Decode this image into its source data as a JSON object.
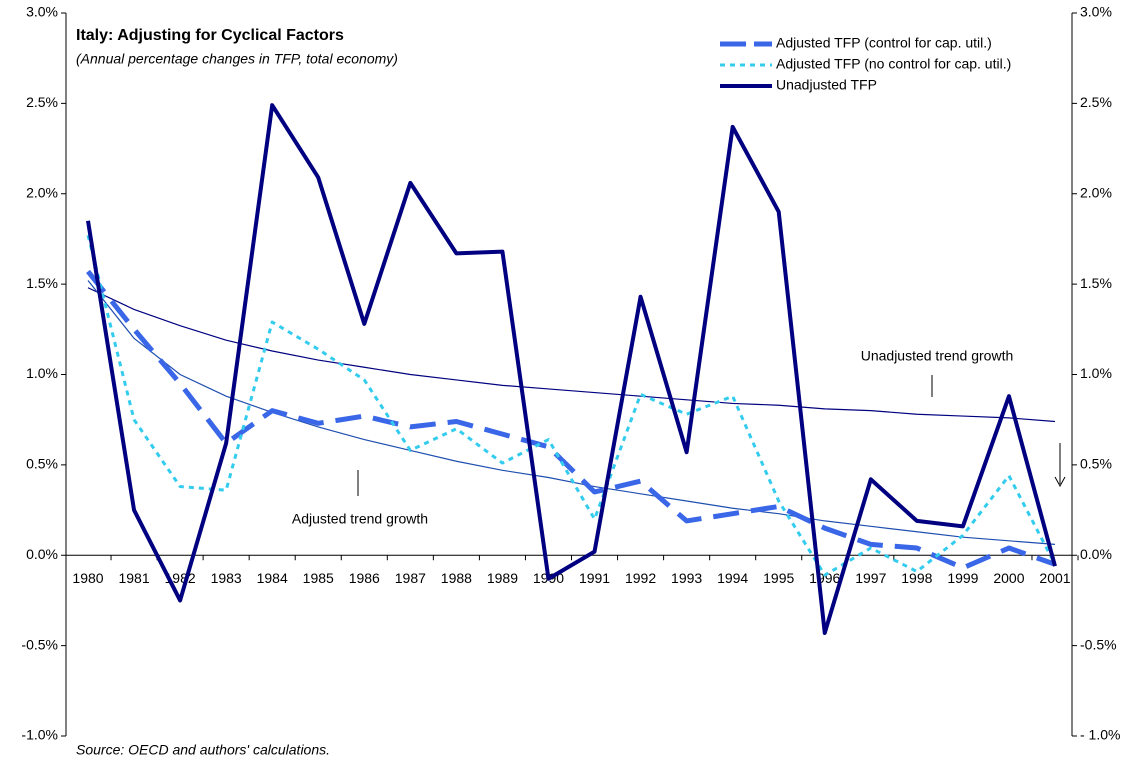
{
  "chart_data": {
    "type": "line",
    "title": "Italy: Adjusting for Cyclical Factors",
    "subtitle": "(Annual percentage changes in TFP, total economy)",
    "source": "Source: OECD and authors' calculations.",
    "categories": [
      "1980",
      "1981",
      "1982",
      "1983",
      "1984",
      "1985",
      "1986",
      "1987",
      "1988",
      "1989",
      "1990",
      "1991",
      "1992",
      "1993",
      "1994",
      "1995",
      "1996",
      "1997",
      "1998",
      "1999",
      "2000",
      "2001"
    ],
    "series": [
      {
        "name": "Adjusted TFP (control for cap. util.)",
        "color": "#3a66e8",
        "style": "dashed",
        "values": [
          1.57,
          1.25,
          0.95,
          0.62,
          0.8,
          0.73,
          0.77,
          0.71,
          0.74,
          0.67,
          0.6,
          0.35,
          0.41,
          0.19,
          0.23,
          0.27,
          0.15,
          0.06,
          0.04,
          -0.07,
          0.04,
          -0.05
        ]
      },
      {
        "name": "Adjusted TFP (no control for cap. util.)",
        "color": "#33ccee",
        "style": "dotted",
        "values": [
          1.77,
          0.75,
          0.38,
          0.36,
          1.29,
          1.14,
          0.97,
          0.58,
          0.7,
          0.51,
          0.64,
          0.2,
          0.89,
          0.78,
          0.88,
          0.3,
          -0.11,
          0.04,
          -0.09,
          0.11,
          0.44,
          -0.05
        ]
      },
      {
        "name": "Unadjusted TFP",
        "color": "#000080",
        "style": "solid",
        "values": [
          1.85,
          0.25,
          -0.25,
          0.62,
          2.49,
          2.09,
          1.28,
          2.06,
          1.67,
          1.68,
          -0.13,
          0.02,
          1.43,
          0.57,
          2.37,
          1.9,
          -0.43,
          0.42,
          0.19,
          0.16,
          0.88,
          -0.06
        ]
      }
    ],
    "trend_lines": [
      {
        "label": "Unadjusted trend growth",
        "color": "#000080",
        "values": [
          1.48,
          1.36,
          1.27,
          1.19,
          1.13,
          1.08,
          1.04,
          1.0,
          0.97,
          0.94,
          0.92,
          0.9,
          0.88,
          0.86,
          0.84,
          0.83,
          0.81,
          0.8,
          0.78,
          0.77,
          0.76,
          0.74
        ]
      },
      {
        "label": "Adjusted trend growth",
        "color": "#1f4fb0",
        "values": [
          1.52,
          1.2,
          1.0,
          0.88,
          0.79,
          0.71,
          0.64,
          0.58,
          0.52,
          0.47,
          0.43,
          0.38,
          0.34,
          0.3,
          0.26,
          0.23,
          0.19,
          0.16,
          0.13,
          0.1,
          0.08,
          0.06
        ]
      }
    ],
    "ylim": [
      -1,
      3
    ],
    "yticks": [
      {
        "value": -1,
        "label": "-1.0%"
      },
      {
        "value": -0.5,
        "label": "-0.5%"
      },
      {
        "value": 0,
        "label": "0.0%"
      },
      {
        "value": 0.5,
        "label": "0.5%"
      },
      {
        "value": 1,
        "label": "1.0%"
      },
      {
        "value": 1.5,
        "label": "1.5%"
      },
      {
        "value": 2,
        "label": "2.0%"
      },
      {
        "value": 2.5,
        "label": "2.5%"
      },
      {
        "value": 3,
        "label": "3.0%"
      }
    ],
    "y2lim": [
      -1,
      3
    ],
    "y2ticks": [
      {
        "value": -1,
        "label": "- 1.0%"
      },
      {
        "value": -0.5,
        "label": "-0.5%"
      },
      {
        "value": 0,
        "label": "0.0%"
      },
      {
        "value": 0.5,
        "label": "0.5%"
      },
      {
        "value": 1,
        "label": "1.0%"
      },
      {
        "value": 1.5,
        "label": "1.5%"
      },
      {
        "value": 2,
        "label": "2.0%"
      },
      {
        "value": 2.5,
        "label": "2.5%"
      },
      {
        "value": 3,
        "label": "3.0%"
      }
    ],
    "grid": false,
    "legend": "top-right"
  }
}
